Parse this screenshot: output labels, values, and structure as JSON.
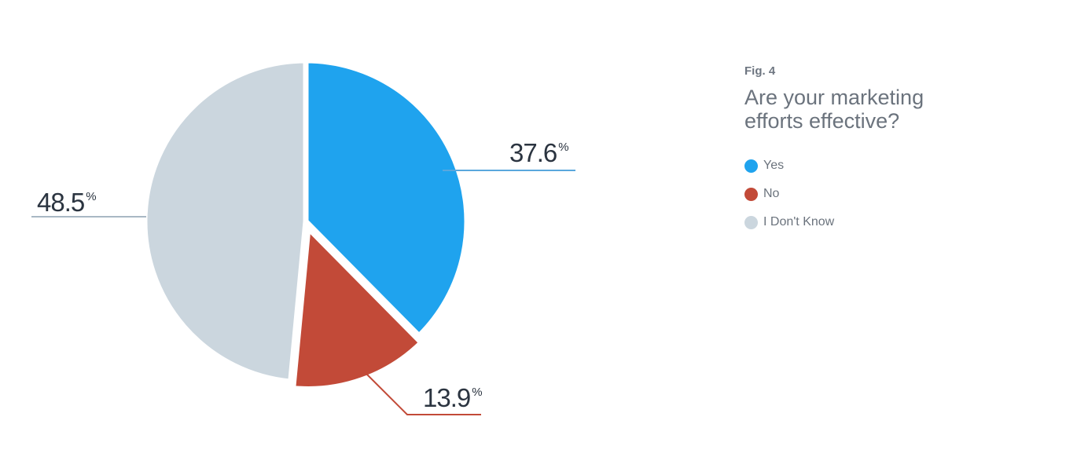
{
  "figure": {
    "label": "Fig. 4",
    "title": "Are your marketing efforts effective?"
  },
  "chart_data": {
    "type": "pie",
    "title": "Are your marketing efforts effective?",
    "unit": "%",
    "categories": [
      "Yes",
      "No",
      "I Don't Know"
    ],
    "values": [
      37.6,
      13.9,
      48.5
    ],
    "value_labels": [
      "37.6",
      "13.9",
      "48.5"
    ],
    "colors": [
      "#1fa3ee",
      "#c24a38",
      "#cbd6de"
    ],
    "legend": "right",
    "start_angle_deg": 0,
    "direction": "clockwise"
  }
}
